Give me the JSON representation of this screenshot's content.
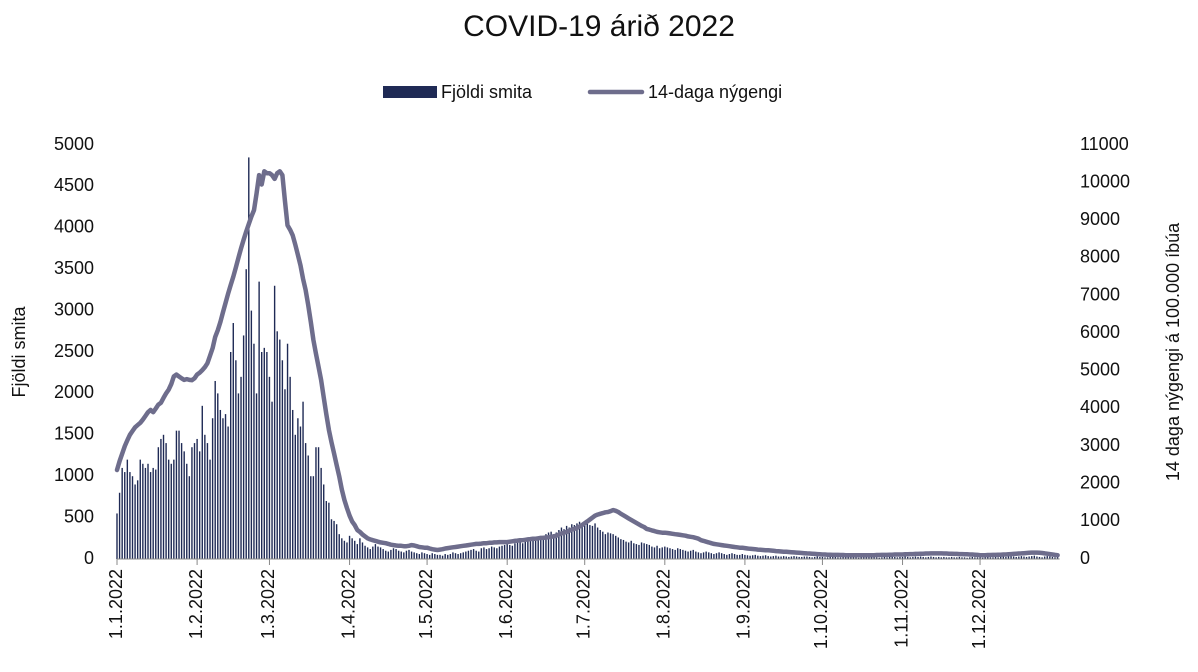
{
  "chart_data": {
    "type": "bar",
    "title": "COVID-19 árið 2022",
    "y_label": "Fjöldi smita",
    "y2_label": "14 daga nýgengi á 100.000 íbúa",
    "legend": "top",
    "ylim": [
      0,
      5000
    ],
    "yticks": [
      0,
      500,
      1000,
      1500,
      2000,
      2500,
      3000,
      3500,
      4000,
      4500,
      5000
    ],
    "y2lim": [
      0,
      11000
    ],
    "y2ticks": [
      0,
      1000,
      2000,
      3000,
      4000,
      5000,
      6000,
      7000,
      8000,
      9000,
      10000,
      11000
    ],
    "categories": [
      "1.1.2022",
      null,
      null,
      null,
      null,
      null,
      null,
      null,
      null,
      null,
      null,
      null,
      null,
      null,
      null,
      null,
      null,
      null,
      null,
      null,
      null,
      null,
      null,
      null,
      null,
      null,
      null,
      null,
      null,
      null,
      null,
      "1.2.2022",
      null,
      null,
      null,
      null,
      null,
      null,
      null,
      null,
      null,
      null,
      null,
      null,
      null,
      null,
      null,
      null,
      null,
      null,
      null,
      null,
      null,
      null,
      null,
      null,
      null,
      null,
      null,
      "1.3.2022",
      null,
      null,
      null,
      null,
      null,
      null,
      null,
      null,
      null,
      null,
      null,
      null,
      null,
      null,
      null,
      null,
      null,
      null,
      null,
      null,
      null,
      null,
      null,
      null,
      null,
      null,
      null,
      null,
      null,
      null,
      "1.4.2022",
      null,
      null,
      null,
      null,
      null,
      null,
      null,
      null,
      null,
      null,
      null,
      null,
      null,
      null,
      null,
      null,
      null,
      null,
      null,
      null,
      null,
      null,
      null,
      null,
      null,
      null,
      null,
      null,
      null,
      "1.5.2022",
      null,
      null,
      null,
      null,
      null,
      null,
      null,
      null,
      null,
      null,
      null,
      null,
      null,
      null,
      null,
      null,
      null,
      null,
      null,
      null,
      null,
      null,
      null,
      null,
      null,
      null,
      null,
      null,
      null,
      null,
      "1.6.2022",
      null,
      null,
      null,
      null,
      null,
      null,
      null,
      null,
      null,
      null,
      null,
      null,
      null,
      null,
      null,
      null,
      null,
      null,
      null,
      null,
      null,
      null,
      null,
      null,
      null,
      null,
      null,
      null,
      null,
      "1.7.2022",
      null,
      null,
      null,
      null,
      null,
      null,
      null,
      null,
      null,
      null,
      null,
      null,
      null,
      null,
      null,
      null,
      null,
      null,
      null,
      null,
      null,
      null,
      null,
      null,
      null,
      null,
      null,
      null,
      null,
      null,
      "1.8.2022",
      null,
      null,
      null,
      null,
      null,
      null,
      null,
      null,
      null,
      null,
      null,
      null,
      null,
      null,
      null,
      null,
      null,
      null,
      null,
      null,
      null,
      null,
      null,
      null,
      null,
      null,
      null,
      null,
      null,
      null,
      "1.9.2022",
      null,
      null,
      null,
      null,
      null,
      null,
      null,
      null,
      null,
      null,
      null,
      null,
      null,
      null,
      null,
      null,
      null,
      null,
      null,
      null,
      null,
      null,
      null,
      null,
      null,
      null,
      null,
      null,
      null,
      "1.10.2022",
      null,
      null,
      null,
      null,
      null,
      null,
      null,
      null,
      null,
      null,
      null,
      null,
      null,
      null,
      null,
      null,
      null,
      null,
      null,
      null,
      null,
      null,
      null,
      null,
      null,
      null,
      null,
      null,
      null,
      null,
      "1.11.2022",
      null,
      null,
      null,
      null,
      null,
      null,
      null,
      null,
      null,
      null,
      null,
      null,
      null,
      null,
      null,
      null,
      null,
      null,
      null,
      null,
      null,
      null,
      null,
      null,
      null,
      null,
      null,
      null,
      null,
      "1.12.2022",
      null,
      null,
      null,
      null,
      null,
      null,
      null,
      null,
      null,
      null,
      null,
      null,
      null,
      null,
      null,
      null,
      null,
      null,
      null,
      null,
      null,
      null,
      null,
      null,
      null,
      null,
      null,
      null,
      null,
      null
    ],
    "series": [
      {
        "name": "Fjöldi smita",
        "type": "bar",
        "color": "#1f2a55",
        "values": [
          550,
          800,
          1100,
          1050,
          1200,
          1050,
          1000,
          900,
          950,
          1200,
          1150,
          1100,
          1150,
          1050,
          1100,
          1080,
          1350,
          1450,
          1500,
          1400,
          1200,
          1150,
          1200,
          1550,
          1550,
          1400,
          1300,
          1150,
          1000,
          1350,
          1400,
          1450,
          1300,
          1850,
          1500,
          1400,
          1200,
          1700,
          2150,
          2000,
          1800,
          1700,
          1750,
          1600,
          2500,
          2850,
          2400,
          2000,
          2200,
          2700,
          3500,
          4850,
          3000,
          2600,
          2000,
          3350,
          2500,
          2550,
          2500,
          2200,
          1900,
          3300,
          2750,
          2650,
          2400,
          2050,
          2600,
          2200,
          1800,
          1500,
          1700,
          1600,
          1900,
          1400,
          1250,
          1000,
          1000,
          1350,
          1350,
          1100,
          900,
          700,
          680,
          480,
          460,
          420,
          300,
          250,
          220,
          200,
          280,
          250,
          220,
          180,
          250,
          200,
          160,
          140,
          120,
          150,
          180,
          150,
          140,
          120,
          100,
          90,
          110,
          130,
          120,
          100,
          90,
          80,
          100,
          110,
          90,
          80,
          70,
          60,
          80,
          70,
          60,
          50,
          70,
          60,
          50,
          50,
          40,
          60,
          50,
          60,
          80,
          70,
          60,
          70,
          80,
          90,
          100,
          110,
          120,
          100,
          90,
          130,
          140,
          120,
          130,
          150,
          140,
          130,
          150,
          160,
          170,
          180,
          170,
          160,
          190,
          200,
          210,
          190,
          220,
          230,
          220,
          250,
          260,
          240,
          270,
          280,
          300,
          320,
          330,
          300,
          320,
          350,
          380,
          360,
          400,
          380,
          420,
          410,
          430,
          450,
          400,
          420,
          430,
          410,
          400,
          430,
          380,
          350,
          330,
          300,
          320,
          310,
          300,
          280,
          260,
          240,
          230,
          210,
          200,
          220,
          190,
          180,
          170,
          200,
          190,
          180,
          170,
          150,
          140,
          160,
          130,
          140,
          150,
          140,
          130,
          120,
          110,
          130,
          120,
          110,
          100,
          90,
          100,
          110,
          90,
          80,
          70,
          80,
          90,
          80,
          70,
          60,
          70,
          80,
          70,
          60,
          50,
          60,
          70,
          60,
          50,
          50,
          60,
          50,
          45,
          40,
          45,
          50,
          40,
          35,
          40,
          45,
          35,
          30,
          35,
          40,
          30,
          30,
          35,
          30,
          25,
          30,
          35,
          30,
          25,
          25,
          30,
          30,
          25,
          20,
          25,
          30,
          25,
          25,
          20,
          20,
          25,
          30,
          25,
          20,
          20,
          25,
          20,
          20,
          25,
          20,
          20,
          15,
          20,
          25,
          20,
          20,
          25,
          20,
          20,
          15,
          20,
          25,
          20,
          25,
          30,
          25,
          20,
          25,
          25,
          30,
          25,
          20,
          25,
          30,
          25,
          30,
          25,
          20,
          25,
          30,
          25,
          20,
          25,
          20,
          25,
          20,
          20,
          25,
          20,
          20,
          25,
          20,
          20,
          15,
          20,
          25,
          20,
          20,
          20,
          15,
          20,
          25,
          20,
          20,
          25,
          20,
          25,
          30,
          25,
          30,
          35,
          30,
          25,
          30,
          35,
          30,
          25,
          30,
          35,
          40,
          30,
          25,
          20,
          30,
          35,
          30,
          25,
          20,
          25
        ]
      },
      {
        "name": "14-daga nýgengi",
        "type": "line",
        "axis": "y2",
        "color": "#6e6d8c",
        "values": [
          2365,
          2600,
          2800,
          3000,
          3150,
          3300,
          3400,
          3500,
          3560,
          3620,
          3700,
          3800,
          3900,
          3960,
          3900,
          4000,
          4100,
          4150,
          4280,
          4400,
          4500,
          4650,
          4850,
          4900,
          4850,
          4800,
          4760,
          4780,
          4760,
          4750,
          4800,
          4900,
          4950,
          5020,
          5100,
          5200,
          5400,
          5600,
          5900,
          6080,
          6300,
          6550,
          6800,
          7050,
          7280,
          7500,
          7750,
          8000,
          8250,
          8480,
          8700,
          8900,
          9100,
          9270,
          9700,
          10200,
          9950,
          10300,
          10250,
          10250,
          10200,
          10100,
          10250,
          10300,
          10200,
          9500,
          8870,
          8750,
          8600,
          8350,
          8080,
          7800,
          7450,
          7150,
          6750,
          6300,
          5820,
          5450,
          5100,
          4760,
          4300,
          3850,
          3430,
          3100,
          2800,
          2500,
          2200,
          1850,
          1570,
          1350,
          1150,
          1000,
          900,
          770,
          720,
          650,
          600,
          550,
          520,
          500,
          480,
          460,
          440,
          430,
          420,
          400,
          380,
          370,
          360,
          350,
          350,
          340,
          340,
          350,
          370,
          360,
          340,
          320,
          310,
          300,
          300,
          280,
          260,
          250,
          240,
          250,
          260,
          280,
          290,
          300,
          310,
          320,
          330,
          340,
          350,
          360,
          370,
          380,
          390,
          400,
          400,
          410,
          420,
          420,
          430,
          430,
          440,
          440,
          450,
          450,
          450,
          450,
          460,
          470,
          480,
          490,
          500,
          500,
          510,
          520,
          530,
          540,
          540,
          550,
          560,
          560,
          570,
          580,
          590,
          600,
          620,
          650,
          680,
          700,
          720,
          750,
          780,
          800,
          830,
          860,
          900,
          950,
          1000,
          1050,
          1100,
          1150,
          1180,
          1200,
          1220,
          1240,
          1250,
          1270,
          1300,
          1280,
          1250,
          1200,
          1160,
          1120,
          1080,
          1040,
          1000,
          960,
          920,
          880,
          850,
          800,
          780,
          760,
          740,
          720,
          710,
          700,
          700,
          690,
          680,
          670,
          660,
          650,
          640,
          630,
          620,
          600,
          590,
          580,
          560,
          540,
          500,
          480,
          460,
          440,
          420,
          400,
          390,
          380,
          370,
          360,
          350,
          340,
          330,
          320,
          310,
          300,
          300,
          290,
          280,
          270,
          265,
          260,
          250,
          245,
          240,
          235,
          230,
          225,
          220,
          210,
          205,
          200,
          195,
          190,
          185,
          180,
          175,
          170,
          165,
          160,
          155,
          150,
          145,
          140,
          135,
          130,
          125,
          120,
          120,
          115,
          115,
          110,
          110,
          110,
          105,
          105,
          100,
          100,
          100,
          100,
          100,
          100,
          100,
          100,
          100,
          100,
          100,
          100,
          105,
          105,
          110,
          110,
          110,
          115,
          115,
          120,
          120,
          120,
          120,
          125,
          125,
          130,
          130,
          135,
          135,
          140,
          140,
          145,
          145,
          150,
          150,
          150,
          150,
          150,
          145,
          145,
          140,
          140,
          135,
          135,
          130,
          130,
          125,
          125,
          120,
          120,
          115,
          110,
          100,
          100,
          100,
          105,
          105,
          110,
          110,
          115,
          115,
          120,
          120,
          125,
          130,
          135,
          140,
          145,
          150,
          155,
          160,
          165,
          170,
          170,
          170,
          165,
          160,
          150,
          140,
          130,
          120,
          110,
          100
        ]
      }
    ]
  }
}
